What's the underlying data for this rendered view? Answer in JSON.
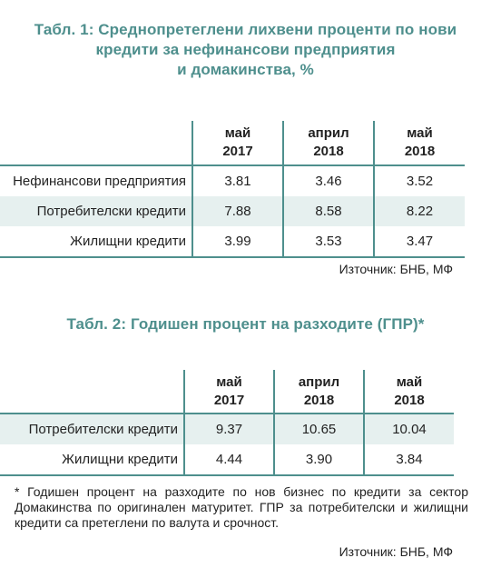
{
  "table1": {
    "title_line1": "Табл. 1: Среднопретеглени лихвени проценти по нови",
    "title_line2": "кредити за нефинансови предприятия",
    "title_line3": "и домакинства, %",
    "columns": [
      {
        "month": "май",
        "year": "2017"
      },
      {
        "month": "април",
        "year": "2018"
      },
      {
        "month": "май",
        "year": "2018"
      }
    ],
    "rows": [
      {
        "label": "Нефинансови предприятия",
        "values": [
          "3.81",
          "3.46",
          "3.52"
        ]
      },
      {
        "label": "Потребителски кредити",
        "values": [
          "7.88",
          "8.58",
          "8.22"
        ]
      },
      {
        "label": "Жилищни кредити",
        "values": [
          "3.99",
          "3.53",
          "3.47"
        ]
      }
    ],
    "source": "Източник: БНБ, МФ"
  },
  "table2": {
    "title": "Табл. 2: Годишен процент на разходите (ГПР)*",
    "columns": [
      {
        "month": "май",
        "year": "2017"
      },
      {
        "month": "април",
        "year": "2018"
      },
      {
        "month": "май",
        "year": "2018"
      }
    ],
    "rows": [
      {
        "label": "Потребителски кредити",
        "values": [
          "9.37",
          "10.65",
          "10.04"
        ]
      },
      {
        "label": "Жилищни кредити",
        "values": [
          "4.44",
          "3.90",
          "3.84"
        ]
      }
    ],
    "note": "* Годишен процент на разходите по нов бизнес по кредити за сектор Домакинства по оригинален матуритет. ГПР за потребителски и жилищни кредити са претеглени по валута и срочност.",
    "source": "Източник: БНБ, МФ"
  },
  "colors": {
    "accent": "#4e8f8d",
    "row_shade": "#e6f0ef",
    "text": "#222222"
  }
}
